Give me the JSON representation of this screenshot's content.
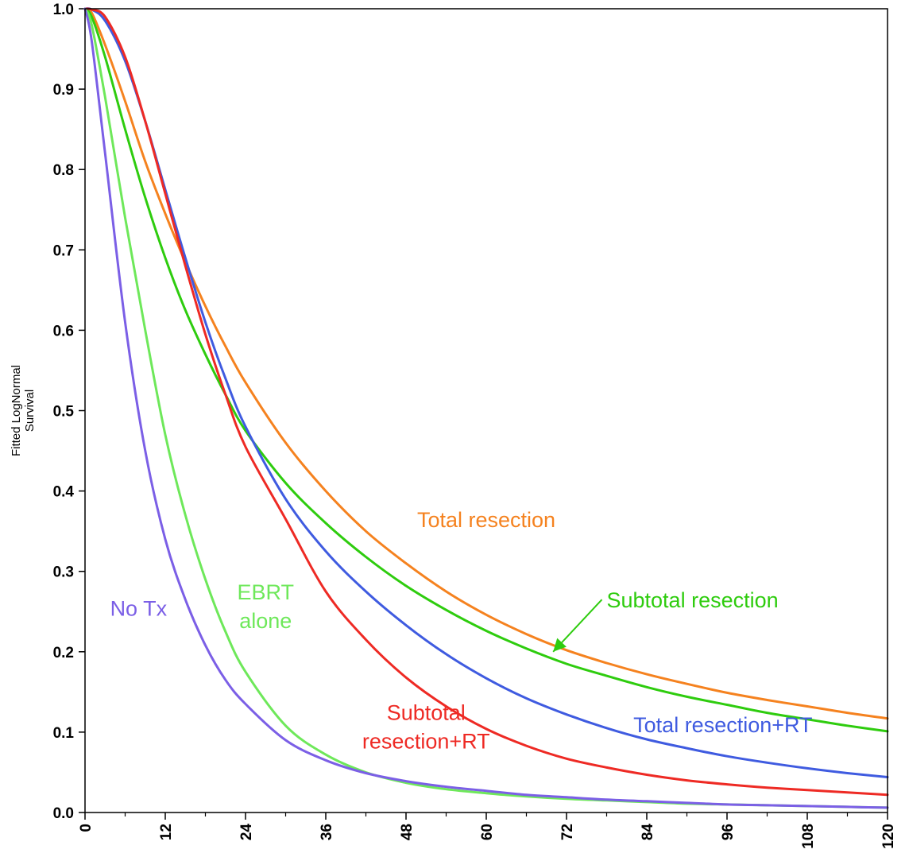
{
  "chart_data": {
    "type": "line",
    "title": "",
    "xlabel": "",
    "ylabel_lines": [
      "Fitted LogNormal",
      "Survival"
    ],
    "xlim": [
      0,
      120
    ],
    "ylim": [
      0.0,
      1.0
    ],
    "x_ticks": [
      0,
      12,
      24,
      36,
      48,
      60,
      72,
      84,
      96,
      108,
      120
    ],
    "x_tick_labels": [
      "0",
      "12",
      "24",
      "36",
      "48",
      "60",
      "72",
      "84",
      "96",
      "108",
      "120"
    ],
    "y_ticks": [
      0.0,
      0.1,
      0.2,
      0.3,
      0.4,
      0.5,
      0.6,
      0.7,
      0.8,
      0.9,
      1.0
    ],
    "y_tick_labels": [
      "0.0",
      "0.1",
      "0.2",
      "0.3",
      "0.4",
      "0.5",
      "0.6",
      "0.7",
      "0.8",
      "0.9",
      "1.0"
    ],
    "x_minor_step": 6,
    "grid": false,
    "legend": "none",
    "series": [
      {
        "key": "total_resection",
        "color": "#f5821f",
        "x": [
          0,
          1,
          3,
          6,
          9,
          12,
          15,
          18,
          21,
          24,
          30,
          36,
          42,
          48,
          54,
          60,
          66,
          72,
          78,
          84,
          90,
          96,
          102,
          108,
          114,
          120
        ],
        "y": [
          1.0,
          0.995,
          0.955,
          0.885,
          0.81,
          0.745,
          0.685,
          0.63,
          0.58,
          0.535,
          0.46,
          0.4,
          0.35,
          0.31,
          0.275,
          0.246,
          0.222,
          0.202,
          0.186,
          0.172,
          0.16,
          0.149,
          0.14,
          0.132,
          0.124,
          0.117
        ]
      },
      {
        "key": "subtotal_resection",
        "color": "#2ecc0e",
        "x": [
          0,
          1,
          3,
          6,
          9,
          12,
          15,
          18,
          21,
          24,
          30,
          36,
          42,
          48,
          54,
          60,
          66,
          72,
          78,
          84,
          90,
          96,
          102,
          108,
          114,
          120
        ],
        "y": [
          1.0,
          0.99,
          0.94,
          0.85,
          0.765,
          0.69,
          0.625,
          0.57,
          0.52,
          0.475,
          0.41,
          0.36,
          0.318,
          0.282,
          0.252,
          0.226,
          0.204,
          0.185,
          0.17,
          0.156,
          0.144,
          0.134,
          0.124,
          0.116,
          0.108,
          0.101
        ]
      },
      {
        "key": "total_resection_rt",
        "color": "#3f5be0",
        "x": [
          0,
          1,
          3,
          6,
          9,
          12,
          15,
          18,
          21,
          24,
          30,
          36,
          42,
          48,
          54,
          60,
          66,
          72,
          78,
          84,
          90,
          96,
          102,
          108,
          114,
          120
        ],
        "y": [
          1.0,
          0.999,
          0.985,
          0.935,
          0.86,
          0.775,
          0.69,
          0.61,
          0.54,
          0.48,
          0.39,
          0.325,
          0.275,
          0.233,
          0.197,
          0.167,
          0.142,
          0.122,
          0.105,
          0.091,
          0.08,
          0.07,
          0.062,
          0.055,
          0.049,
          0.044
        ]
      },
      {
        "key": "subtotal_resection_rt",
        "color": "#ee2a24",
        "x": [
          0,
          1,
          3,
          6,
          9,
          12,
          15,
          18,
          21,
          24,
          30,
          36,
          42,
          48,
          54,
          60,
          66,
          72,
          78,
          84,
          90,
          96,
          102,
          108,
          114,
          120
        ],
        "y": [
          1.0,
          0.999,
          0.99,
          0.94,
          0.86,
          0.77,
          0.68,
          0.595,
          0.52,
          0.455,
          0.365,
          0.275,
          0.215,
          0.168,
          0.132,
          0.104,
          0.083,
          0.067,
          0.056,
          0.047,
          0.04,
          0.035,
          0.031,
          0.028,
          0.025,
          0.022
        ]
      },
      {
        "key": "ebrt_alone",
        "color": "#6ee85a",
        "x": [
          0,
          1,
          3,
          6,
          9,
          12,
          15,
          18,
          21,
          24,
          30,
          36,
          42,
          48,
          54,
          60,
          66,
          72,
          78,
          84,
          90,
          96,
          102,
          108,
          114,
          120
        ],
        "y": [
          1.0,
          0.98,
          0.89,
          0.74,
          0.6,
          0.47,
          0.37,
          0.29,
          0.225,
          0.175,
          0.108,
          0.072,
          0.05,
          0.037,
          0.029,
          0.024,
          0.02,
          0.017,
          0.015,
          0.013,
          0.011,
          0.01,
          0.009,
          0.008,
          0.007,
          0.006
        ]
      },
      {
        "key": "no_tx",
        "color": "#7b5fe6",
        "x": [
          0,
          1,
          3,
          6,
          9,
          12,
          15,
          18,
          21,
          24,
          30,
          36,
          42,
          48,
          54,
          60,
          66,
          72,
          78,
          84,
          90,
          96,
          102,
          108,
          114,
          120
        ],
        "y": [
          1.0,
          0.96,
          0.82,
          0.61,
          0.45,
          0.34,
          0.265,
          0.208,
          0.165,
          0.135,
          0.09,
          0.065,
          0.049,
          0.039,
          0.032,
          0.027,
          0.022,
          0.019,
          0.016,
          0.014,
          0.012,
          0.01,
          0.009,
          0.008,
          0.007,
          0.006
        ]
      }
    ],
    "annotations": [
      {
        "key": "total_resection",
        "lines": [
          "Total resection"
        ],
        "color": "#f5821f",
        "x": 60,
        "y": 0.355,
        "anchor": "middle"
      },
      {
        "key": "subtotal_resection",
        "lines": [
          "Subtotal resection"
        ],
        "color": "#2ecc0e",
        "x": 78,
        "y": 0.255,
        "anchor": "start",
        "arrow_to": [
          70,
          0.2
        ]
      },
      {
        "key": "total_resection_rt",
        "lines": [
          "Total resection+RT"
        ],
        "color": "#3f5be0",
        "x": 82,
        "y": 0.1,
        "anchor": "start"
      },
      {
        "key": "subtotal_resection_rt",
        "lines": [
          "Subtotal",
          "resection+RT"
        ],
        "color": "#ee2a24",
        "x": 51,
        "y": 0.115,
        "anchor": "middle"
      },
      {
        "key": "ebrt_alone",
        "lines": [
          "EBRT",
          "alone"
        ],
        "color": "#6ee85a",
        "x": 27,
        "y": 0.265,
        "anchor": "middle"
      },
      {
        "key": "no_tx",
        "lines": [
          "No Tx"
        ],
        "color": "#7b5fe6",
        "x": 8,
        "y": 0.245,
        "anchor": "middle"
      }
    ]
  }
}
